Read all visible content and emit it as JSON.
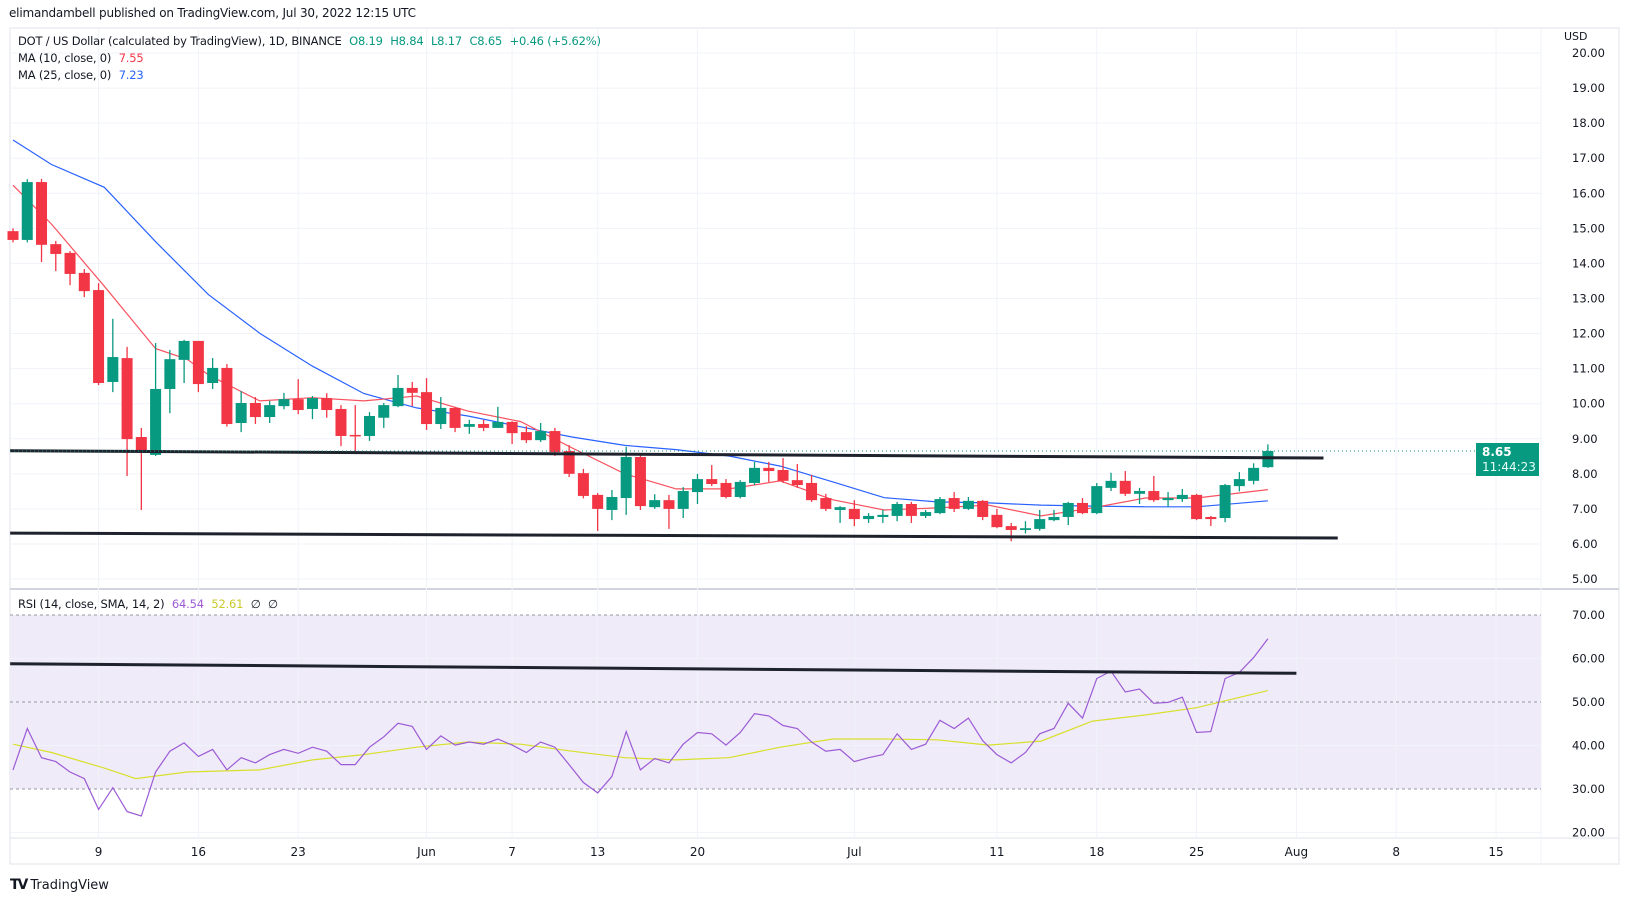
{
  "header": {
    "published": "elimandambell published on TradingView.com, Jul 30, 2022 12:15 UTC"
  },
  "legend": {
    "symbol": "DOT / US Dollar (calculated by TradingView), 1D, BINANCE",
    "open": "O8.19",
    "high": "H8.84",
    "low": "L8.17",
    "close": "C8.65",
    "change": "+0.46 (+5.62%)",
    "ma10_label": "MA (10, close, 0)",
    "ma10_value": "7.55",
    "ma25_label": "MA (25, close, 0)",
    "ma25_value": "7.23",
    "rsi_label": "RSI (14, close, SMA, 14, 2)",
    "rsi_value": "64.54",
    "rsi_sma_value": "52.61",
    "rsi_extra1": "∅",
    "rsi_extra2": "∅"
  },
  "price_axis": {
    "currency": "USD",
    "last_price": "8.65",
    "countdown": "11:44:23"
  },
  "footer": {
    "logo_text": "TradingView"
  },
  "colors": {
    "up": "#089981",
    "down": "#f23645",
    "ma10": "#f7525f",
    "ma25": "#2962ff",
    "rsi": "#9c5bd6",
    "rsi_sma": "#d9e02a",
    "rsi_band": "#efebf8",
    "trendline": "#1e222d"
  },
  "chart_data": [
    {
      "type": "candlestick",
      "title": "DOT / US Dollar, 1D, BINANCE",
      "start_date": "2022-05-03",
      "ylim": [
        5,
        20
      ],
      "ylabel": "USD",
      "yticks": [
        "5.00",
        "6.00",
        "7.00",
        "8.00",
        "9.00",
        "10.00",
        "11.00",
        "12.00",
        "13.00",
        "14.00",
        "15.00",
        "16.00",
        "17.00",
        "18.00",
        "19.00",
        "20.00"
      ],
      "xticks": [
        {
          "label": "9",
          "day": 6
        },
        {
          "label": "16",
          "day": 13
        },
        {
          "label": "23",
          "day": 20
        },
        {
          "label": "Jun",
          "day": 29
        },
        {
          "label": "7",
          "day": 35
        },
        {
          "label": "13",
          "day": 41
        },
        {
          "label": "20",
          "day": 48
        },
        {
          "label": "Jul",
          "day": 59
        },
        {
          "label": "11",
          "day": 69
        },
        {
          "label": "18",
          "day": 76
        },
        {
          "label": "25",
          "day": 83
        },
        {
          "label": "Aug",
          "day": 90
        },
        {
          "label": "8",
          "day": 97
        },
        {
          "label": "15",
          "day": 104
        }
      ],
      "ohlc": [
        [
          14.92,
          15.0,
          14.6,
          14.67
        ],
        [
          14.67,
          16.4,
          14.6,
          16.32
        ],
        [
          16.32,
          16.41,
          14.04,
          14.53
        ],
        [
          14.55,
          14.64,
          13.78,
          14.27
        ],
        [
          14.3,
          14.35,
          13.38,
          13.7
        ],
        [
          13.73,
          13.84,
          13.04,
          13.21
        ],
        [
          13.24,
          13.44,
          10.53,
          10.59
        ],
        [
          10.62,
          12.42,
          10.33,
          11.33
        ],
        [
          11.3,
          11.62,
          7.94,
          8.99
        ],
        [
          9.05,
          9.31,
          6.97,
          8.65
        ],
        [
          8.54,
          11.73,
          8.51,
          10.42
        ],
        [
          10.42,
          11.53,
          9.73,
          11.27
        ],
        [
          11.25,
          11.82,
          10.59,
          11.79
        ],
        [
          11.79,
          11.79,
          10.33,
          10.56
        ],
        [
          10.59,
          11.3,
          10.42,
          11.02
        ],
        [
          11.02,
          11.13,
          9.35,
          9.42
        ],
        [
          9.45,
          10.36,
          9.19,
          10.02
        ],
        [
          10.02,
          10.19,
          9.42,
          9.62
        ],
        [
          9.62,
          10.08,
          9.45,
          9.96
        ],
        [
          9.93,
          10.31,
          9.84,
          10.13
        ],
        [
          10.13,
          10.7,
          9.7,
          9.82
        ],
        [
          9.85,
          10.22,
          9.56,
          10.16
        ],
        [
          10.16,
          10.3,
          9.6,
          9.82
        ],
        [
          9.85,
          9.96,
          8.79,
          9.08
        ],
        [
          9.11,
          9.96,
          8.6,
          9.08
        ],
        [
          9.08,
          9.76,
          8.94,
          9.65
        ],
        [
          9.6,
          10.02,
          9.31,
          9.96
        ],
        [
          9.93,
          10.82,
          9.9,
          10.45
        ],
        [
          10.45,
          10.62,
          9.93,
          10.31
        ],
        [
          10.33,
          10.73,
          9.25,
          9.42
        ],
        [
          9.42,
          10.19,
          9.28,
          9.88
        ],
        [
          9.88,
          9.9,
          9.19,
          9.31
        ],
        [
          9.34,
          9.54,
          9.14,
          9.42
        ],
        [
          9.42,
          9.54,
          9.22,
          9.31
        ],
        [
          9.31,
          9.91,
          9.31,
          9.48
        ],
        [
          9.48,
          9.5,
          8.85,
          9.16
        ],
        [
          9.19,
          9.36,
          8.88,
          8.96
        ],
        [
          8.96,
          9.45,
          8.91,
          9.22
        ],
        [
          9.22,
          9.31,
          8.51,
          8.62
        ],
        [
          8.65,
          8.82,
          7.91,
          8.0
        ],
        [
          8.02,
          8.14,
          7.3,
          7.37
        ],
        [
          7.4,
          7.45,
          6.37,
          7.0
        ],
        [
          6.97,
          7.54,
          6.68,
          7.34
        ],
        [
          7.31,
          8.77,
          6.83,
          8.48
        ],
        [
          8.48,
          8.54,
          6.97,
          7.08
        ],
        [
          7.05,
          7.42,
          7.0,
          7.25
        ],
        [
          7.25,
          7.4,
          6.43,
          7.0
        ],
        [
          7.0,
          7.62,
          6.74,
          7.51
        ],
        [
          7.48,
          8.0,
          7.14,
          7.85
        ],
        [
          7.85,
          8.25,
          7.65,
          7.71
        ],
        [
          7.74,
          7.85,
          7.3,
          7.34
        ],
        [
          7.34,
          7.82,
          7.3,
          7.77
        ],
        [
          7.74,
          8.34,
          7.68,
          8.17
        ],
        [
          8.17,
          8.34,
          7.77,
          8.08
        ],
        [
          8.11,
          8.45,
          7.74,
          7.8
        ],
        [
          7.82,
          8.28,
          7.6,
          7.68
        ],
        [
          7.74,
          7.97,
          7.2,
          7.25
        ],
        [
          7.31,
          7.43,
          6.94,
          7.0
        ],
        [
          6.97,
          7.08,
          6.6,
          7.05
        ],
        [
          7.0,
          7.25,
          6.51,
          6.71
        ],
        [
          6.71,
          6.88,
          6.6,
          6.8
        ],
        [
          6.77,
          6.97,
          6.6,
          6.83
        ],
        [
          6.8,
          7.2,
          6.65,
          7.14
        ],
        [
          7.14,
          7.2,
          6.6,
          6.8
        ],
        [
          6.8,
          6.97,
          6.74,
          6.91
        ],
        [
          6.88,
          7.34,
          6.85,
          7.28
        ],
        [
          7.31,
          7.48,
          6.91,
          7.0
        ],
        [
          7.0,
          7.34,
          6.97,
          7.23
        ],
        [
          7.23,
          7.25,
          6.68,
          6.77
        ],
        [
          6.83,
          7.0,
          6.45,
          6.48
        ],
        [
          6.51,
          6.6,
          6.08,
          6.4
        ],
        [
          6.4,
          6.65,
          6.3,
          6.45
        ],
        [
          6.43,
          6.97,
          6.38,
          6.71
        ],
        [
          6.68,
          6.97,
          6.65,
          6.77
        ],
        [
          6.77,
          7.2,
          6.54,
          7.17
        ],
        [
          7.17,
          7.31,
          6.85,
          6.88
        ],
        [
          6.88,
          7.74,
          6.85,
          7.65
        ],
        [
          7.6,
          8.03,
          7.51,
          7.8
        ],
        [
          7.8,
          8.08,
          7.37,
          7.43
        ],
        [
          7.43,
          7.6,
          7.14,
          7.51
        ],
        [
          7.51,
          7.94,
          7.2,
          7.25
        ],
        [
          7.25,
          7.48,
          7.06,
          7.31
        ],
        [
          7.28,
          7.57,
          7.2,
          7.4
        ],
        [
          7.4,
          7.43,
          6.68,
          6.71
        ],
        [
          6.77,
          6.8,
          6.51,
          6.71
        ],
        [
          6.74,
          7.71,
          6.62,
          7.68
        ],
        [
          7.65,
          8.05,
          7.5,
          7.85
        ],
        [
          7.8,
          8.3,
          7.7,
          8.17
        ],
        [
          8.19,
          8.84,
          8.17,
          8.65
        ]
      ],
      "ma10": [
        [
          0,
          16.23
        ],
        [
          2.7,
          15.12
        ],
        [
          6.4,
          13.35
        ],
        [
          10,
          11.57
        ],
        [
          12.2,
          11.27
        ],
        [
          13.7,
          10.82
        ],
        [
          17.3,
          10.08
        ],
        [
          21,
          10.17
        ],
        [
          24.6,
          10.08
        ],
        [
          28.3,
          10.22
        ],
        [
          31.9,
          9.79
        ],
        [
          35.6,
          9.49
        ],
        [
          39.2,
          8.74
        ],
        [
          42.9,
          8.0
        ],
        [
          46.5,
          7.57
        ],
        [
          50.2,
          7.57
        ],
        [
          53.8,
          7.8
        ],
        [
          57.5,
          7.26
        ],
        [
          61.1,
          6.97
        ],
        [
          64.8,
          7.03
        ],
        [
          68.4,
          7.11
        ],
        [
          72.1,
          6.8
        ],
        [
          75.7,
          7.03
        ],
        [
          79.4,
          7.31
        ],
        [
          83,
          7.31
        ],
        [
          88,
          7.55
        ]
      ],
      "ma25": [
        [
          0,
          17.52
        ],
        [
          2.7,
          16.82
        ],
        [
          6.4,
          16.17
        ],
        [
          10,
          14.62
        ],
        [
          13.7,
          13.11
        ],
        [
          17.3,
          12.01
        ],
        [
          21,
          11.07
        ],
        [
          24.6,
          10.29
        ],
        [
          28.3,
          9.88
        ],
        [
          31.9,
          9.65
        ],
        [
          35.6,
          9.34
        ],
        [
          39.2,
          9.05
        ],
        [
          42.9,
          8.81
        ],
        [
          46.5,
          8.69
        ],
        [
          50.2,
          8.51
        ],
        [
          53.8,
          8.22
        ],
        [
          57.5,
          7.77
        ],
        [
          61.1,
          7.32
        ],
        [
          64.8,
          7.2
        ],
        [
          68.4,
          7.17
        ],
        [
          72.1,
          7.11
        ],
        [
          75.7,
          7.08
        ],
        [
          79.4,
          7.06
        ],
        [
          83,
          7.06
        ],
        [
          88,
          7.23
        ]
      ],
      "trendlines": [
        [
          [
            -0.9,
            8.66
          ],
          [
            91.9,
            8.45
          ]
        ],
        [
          [
            -0.2,
            6.31
          ],
          [
            92.9,
            6.17
          ]
        ]
      ],
      "last_price": 8.65
    },
    {
      "type": "line",
      "title": "RSI (14, close, SMA, 14, 2)",
      "ylim": [
        20,
        70
      ],
      "yticks": [
        "20.00",
        "30.00",
        "40.00",
        "50.00",
        "60.00",
        "70.00"
      ],
      "band": [
        30,
        70
      ],
      "midline": 50,
      "rsi": [
        34.4,
        43.9,
        37.2,
        36.3,
        33.9,
        32.4,
        25.3,
        30.3,
        24.8,
        23.8,
        33.9,
        38.7,
        40.6,
        37.5,
        39.1,
        34.4,
        37.2,
        36,
        37.9,
        39.1,
        38.2,
        39.6,
        38.7,
        35.6,
        35.6,
        39.6,
        42,
        45.1,
        44.4,
        39.1,
        42.2,
        40.1,
        40.8,
        40.3,
        41.5,
        40.1,
        38.4,
        40.8,
        39.6,
        35.6,
        31.5,
        29.1,
        32.9,
        43.2,
        34.4,
        37,
        36,
        40.3,
        43,
        42.7,
        40.1,
        43,
        47.3,
        46.8,
        44.6,
        43.9,
        40.8,
        38.7,
        39.1,
        36.3,
        37.2,
        37.9,
        42.7,
        39.1,
        40.3,
        45.8,
        43.9,
        46.3,
        41.1,
        37.9,
        36,
        38.4,
        42.7,
        43.9,
        49.7,
        46.3,
        55.4,
        57.1,
        52.3,
        53,
        49.7,
        49.9,
        51.1,
        43,
        43.2,
        55.4,
        56.8,
        60.2,
        64.54
      ],
      "rsi_sma": [
        [
          0,
          40.3
        ],
        [
          2.7,
          38.4
        ],
        [
          6.4,
          34.8
        ],
        [
          8.6,
          32.4
        ],
        [
          12.2,
          33.9
        ],
        [
          17.3,
          34.4
        ],
        [
          21,
          36.7
        ],
        [
          24.6,
          37.9
        ],
        [
          28.3,
          39.6
        ],
        [
          31.9,
          40.8
        ],
        [
          35.6,
          40.3
        ],
        [
          39.2,
          38.7
        ],
        [
          42.9,
          37.2
        ],
        [
          46.5,
          36.7
        ],
        [
          50.2,
          37.2
        ],
        [
          53.8,
          39.6
        ],
        [
          57.5,
          41.5
        ],
        [
          61.1,
          41.5
        ],
        [
          64.8,
          41.3
        ],
        [
          68.4,
          40.1
        ],
        [
          72.1,
          41
        ],
        [
          75.7,
          45.6
        ],
        [
          79.4,
          47
        ],
        [
          83,
          48.7
        ],
        [
          88,
          52.61
        ]
      ],
      "trendline": [
        [
          -0.2,
          58.8
        ],
        [
          90,
          56.6
        ]
      ]
    }
  ]
}
